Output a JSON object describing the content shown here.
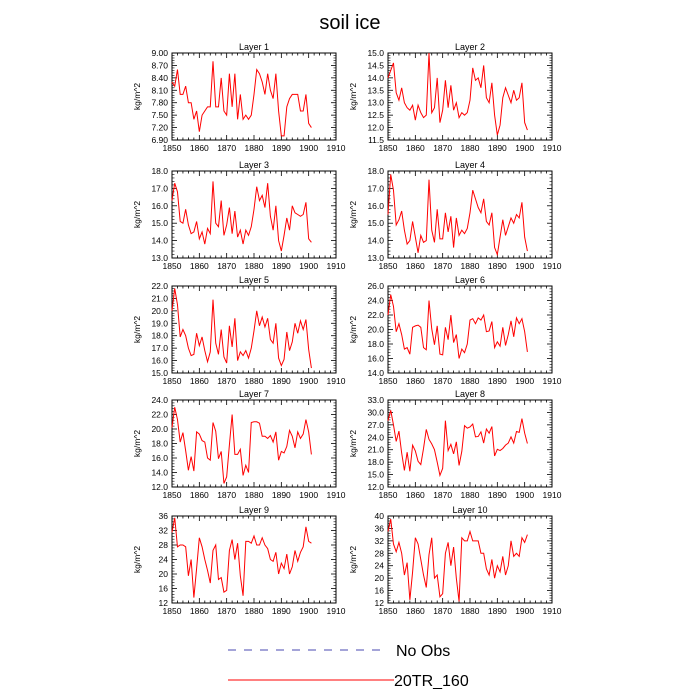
{
  "figure": {
    "title": "soil ice",
    "legend": {
      "no_obs": {
        "label": "No Obs",
        "color": "#4a4ab0",
        "dash": true
      },
      "model": {
        "label": "20TR_160",
        "color": "#ff0000",
        "dash": false
      }
    }
  },
  "chart_data": [
    {
      "type": "line",
      "title": "Layer 1",
      "ylabel": "kg/m^2",
      "xlim": [
        1850,
        1910
      ],
      "xticks": [
        "1850",
        "1860",
        "1870",
        "1880",
        "1890",
        "1900",
        "1910"
      ],
      "ylim": [
        6.9,
        9.0
      ],
      "yticks": [
        "6.90",
        "7.20",
        "7.50",
        "7.80",
        "8.10",
        "8.40",
        "8.70",
        "9.00"
      ],
      "x_start": 1850,
      "series": [
        {
          "color": "#ff0000",
          "values": [
            8.3,
            8.2,
            8.6,
            8.0,
            8.0,
            8.2,
            7.8,
            7.8,
            7.4,
            7.6,
            7.1,
            7.5,
            7.6,
            7.7,
            7.7,
            8.8,
            7.7,
            7.7,
            8.4,
            7.6,
            7.5,
            8.5,
            7.7,
            8.5,
            7.4,
            8.0,
            7.4,
            7.5,
            7.4,
            7.5,
            8.0,
            8.6,
            8.5,
            8.3,
            8.0,
            8.5,
            8.1,
            7.9,
            8.5,
            7.6,
            7.0,
            7.0,
            7.7,
            7.9,
            8.0,
            8.0,
            8.0,
            7.6,
            7.6,
            8.0,
            7.3,
            7.2
          ]
        }
      ]
    },
    {
      "type": "line",
      "title": "Layer 2",
      "ylabel": "kg/m^2",
      "xlim": [
        1850,
        1910
      ],
      "xticks": [
        "1850",
        "1860",
        "1870",
        "1880",
        "1890",
        "1900",
        "1910"
      ],
      "ylim": [
        11.5,
        15.0
      ],
      "yticks": [
        "11.5",
        "12.0",
        "12.5",
        "13.0",
        "13.5",
        "14.0",
        "14.5",
        "15.0"
      ],
      "x_start": 1850,
      "series": [
        {
          "color": "#ff0000",
          "values": [
            14.0,
            14.3,
            14.6,
            13.4,
            13.1,
            13.6,
            13.0,
            12.8,
            12.7,
            12.9,
            12.3,
            12.9,
            12.6,
            12.4,
            12.5,
            15.0,
            12.6,
            12.8,
            14.0,
            12.2,
            12.7,
            13.9,
            12.8,
            13.7,
            12.7,
            13.0,
            12.4,
            12.6,
            12.5,
            12.6,
            13.1,
            14.4,
            13.9,
            14.0,
            13.6,
            14.5,
            13.2,
            13.0,
            13.8,
            12.5,
            11.7,
            12.1,
            13.2,
            13.6,
            13.3,
            13.0,
            13.5,
            13.1,
            13.2,
            13.8,
            12.2,
            11.9
          ]
        }
      ]
    },
    {
      "type": "line",
      "title": "Layer 3",
      "ylabel": "kg/m^2",
      "xlim": [
        1850,
        1910
      ],
      "xticks": [
        "1850",
        "1860",
        "1870",
        "1880",
        "1890",
        "1900",
        "1910"
      ],
      "ylim": [
        13.0,
        18.0
      ],
      "yticks": [
        "13.0",
        "14.0",
        "15.0",
        "16.0",
        "17.0",
        "18.0"
      ],
      "x_start": 1850,
      "series": [
        {
          "color": "#ff0000",
          "values": [
            16.3,
            17.3,
            16.8,
            15.1,
            15.0,
            15.8,
            14.9,
            14.4,
            14.5,
            15.1,
            14.1,
            14.5,
            13.8,
            14.7,
            14.4,
            17.4,
            15.0,
            14.8,
            16.3,
            14.3,
            14.9,
            15.9,
            14.4,
            15.7,
            14.2,
            14.6,
            13.8,
            14.6,
            14.3,
            14.8,
            15.8,
            17.1,
            16.3,
            16.6,
            15.9,
            17.3,
            15.4,
            14.6,
            16.0,
            14.0,
            13.4,
            14.3,
            15.3,
            14.6,
            16.0,
            15.6,
            15.5,
            15.4,
            15.5,
            16.2,
            14.1,
            13.9
          ]
        }
      ]
    },
    {
      "type": "line",
      "title": "Layer 4",
      "ylabel": "kg/m^2",
      "xlim": [
        1850,
        1910
      ],
      "xticks": [
        "1850",
        "1860",
        "1870",
        "1880",
        "1890",
        "1900",
        "1910"
      ],
      "ylim": [
        13.0,
        18.0
      ],
      "yticks": [
        "13.0",
        "14.0",
        "15.0",
        "16.0",
        "17.0",
        "18.0"
      ],
      "x_start": 1850,
      "series": [
        {
          "color": "#ff0000",
          "values": [
            15.5,
            17.8,
            16.9,
            14.9,
            15.2,
            15.7,
            14.6,
            13.8,
            14.0,
            15.1,
            14.2,
            13.3,
            14.3,
            13.9,
            14.0,
            17.5,
            14.6,
            13.9,
            15.8,
            14.1,
            14.1,
            15.6,
            14.5,
            15.4,
            13.6,
            15.3,
            14.3,
            14.6,
            14.4,
            14.7,
            15.6,
            16.9,
            16.4,
            15.9,
            15.6,
            16.4,
            15.1,
            14.9,
            15.6,
            13.6,
            13.2,
            14.2,
            15.2,
            14.3,
            14.8,
            15.3,
            15.0,
            15.5,
            15.3,
            16.2,
            14.2,
            13.4
          ]
        }
      ]
    },
    {
      "type": "line",
      "title": "Layer 5",
      "ylabel": "kg/m^2",
      "xlim": [
        1850,
        1910
      ],
      "xticks": [
        "1850",
        "1860",
        "1870",
        "1880",
        "1890",
        "1900",
        "1910"
      ],
      "ylim": [
        15.0,
        22.0
      ],
      "yticks": [
        "15.0",
        "16.0",
        "17.0",
        "18.0",
        "19.0",
        "20.0",
        "21.0",
        "22.0"
      ],
      "x_start": 1850,
      "series": [
        {
          "color": "#ff0000",
          "values": [
            20.0,
            21.8,
            20.5,
            17.9,
            18.5,
            18.0,
            17.0,
            16.4,
            16.5,
            18.2,
            17.2,
            17.9,
            16.8,
            15.9,
            16.7,
            20.9,
            17.4,
            16.5,
            18.5,
            16.3,
            15.8,
            18.8,
            17.1,
            19.4,
            16.0,
            16.7,
            16.4,
            16.8,
            16.2,
            17.0,
            18.4,
            20.0,
            18.8,
            19.5,
            18.7,
            19.4,
            17.7,
            17.4,
            19.0,
            16.2,
            15.6,
            16.1,
            18.3,
            16.8,
            17.5,
            19.0,
            18.2,
            19.2,
            18.5,
            19.3,
            16.9,
            15.4
          ]
        }
      ]
    },
    {
      "type": "line",
      "title": "Layer 6",
      "ylabel": "kg/m^2",
      "xlim": [
        1850,
        1910
      ],
      "xticks": [
        "1850",
        "1860",
        "1870",
        "1880",
        "1890",
        "1900",
        "1910"
      ],
      "ylim": [
        14.0,
        26.0
      ],
      "yticks": [
        "14.0",
        "16.0",
        "18.0",
        "20.0",
        "22.0",
        "24.0",
        "26.0"
      ],
      "x_start": 1850,
      "series": [
        {
          "color": "#ff0000",
          "values": [
            22.0,
            24.8,
            23.2,
            19.7,
            20.8,
            19.3,
            17.3,
            17.5,
            16.6,
            20.3,
            20.5,
            20.6,
            20.3,
            17.5,
            17.2,
            24.0,
            20.1,
            17.9,
            20.5,
            16.6,
            16.5,
            20.3,
            18.6,
            22.0,
            18.2,
            19.3,
            16.0,
            17.3,
            16.8,
            18.0,
            21.3,
            21.5,
            20.8,
            21.6,
            21.3,
            22.0,
            19.7,
            19.8,
            21.1,
            17.5,
            18.3,
            17.7,
            20.3,
            17.8,
            19.3,
            21.2,
            19.0,
            21.6,
            20.8,
            21.5,
            19.7,
            16.9
          ]
        }
      ]
    },
    {
      "type": "line",
      "title": "Layer 7",
      "ylabel": "kg/m^2",
      "xlim": [
        1850,
        1910
      ],
      "xticks": [
        "1850",
        "1860",
        "1870",
        "1880",
        "1890",
        "1900",
        "1910"
      ],
      "ylim": [
        12.0,
        24.0
      ],
      "yticks": [
        "12.0",
        "14.0",
        "16.0",
        "18.0",
        "20.0",
        "22.0",
        "24.0"
      ],
      "x_start": 1850,
      "series": [
        {
          "color": "#ff0000",
          "values": [
            20.2,
            23.0,
            21.3,
            18.2,
            19.5,
            17.0,
            14.3,
            16.2,
            14.2,
            19.6,
            19.3,
            18.4,
            18.2,
            16.0,
            15.7,
            20.9,
            19.7,
            15.9,
            16.9,
            12.5,
            13.4,
            17.8,
            22.0,
            16.5,
            16.5,
            17.2,
            13.6,
            15.0,
            14.0,
            20.9,
            21.0,
            21.0,
            20.8,
            19.0,
            19.0,
            18.7,
            19.1,
            18.2,
            19.6,
            15.7,
            16.9,
            16.7,
            17.6,
            19.8,
            19.0,
            17.4,
            19.6,
            18.7,
            19.3,
            21.3,
            19.6,
            16.5
          ]
        }
      ]
    },
    {
      "type": "line",
      "title": "Layer 8",
      "ylabel": "kg/m^2",
      "xlim": [
        1850,
        1910
      ],
      "xticks": [
        "1850",
        "1860",
        "1870",
        "1880",
        "1890",
        "1900",
        "1910"
      ],
      "ylim": [
        12.0,
        33.0
      ],
      "yticks": [
        "12.0",
        "15.0",
        "18.0",
        "21.0",
        "24.0",
        "27.0",
        "30.0",
        "33.0"
      ],
      "x_start": 1850,
      "series": [
        {
          "color": "#ff0000",
          "values": [
            28.0,
            30.5,
            27.0,
            23.0,
            25.5,
            20.2,
            16.0,
            20.4,
            15.8,
            22.1,
            20.7,
            18.2,
            17.4,
            21.3,
            25.9,
            23.5,
            22.4,
            21.0,
            18.0,
            14.8,
            16.5,
            28.0,
            20.8,
            22.3,
            20.0,
            22.9,
            17.2,
            20.6,
            26.8,
            26.2,
            26.5,
            27.2,
            24.1,
            24.2,
            25.3,
            22.6,
            26.0,
            25.0,
            26.6,
            19.5,
            21.1,
            20.8,
            21.3,
            22.1,
            22.6,
            24.1,
            22.6,
            25.4,
            25.2,
            28.5,
            25.0,
            22.5
          ]
        }
      ]
    },
    {
      "type": "line",
      "title": "Layer 9",
      "ylabel": "kg/m^2",
      "xlim": [
        1850,
        1910
      ],
      "xticks": [
        "1850",
        "1860",
        "1870",
        "1880",
        "1890",
        "1900",
        "1910"
      ],
      "ylim": [
        12,
        36
      ],
      "yticks": [
        "12",
        "16",
        "20",
        "24",
        "28",
        "32",
        "36"
      ],
      "x_start": 1850,
      "series": [
        {
          "color": "#ff0000",
          "values": [
            31.5,
            35.5,
            27.5,
            28.0,
            28.0,
            27.5,
            19.5,
            24.0,
            13.5,
            21.5,
            30.0,
            27.5,
            24.0,
            21.0,
            17.5,
            26.5,
            28.0,
            18.5,
            19.0,
            15.0,
            15.5,
            26.5,
            29.5,
            24.0,
            28.5,
            19.5,
            14.0,
            29.0,
            29.0,
            28.5,
            30.5,
            28.0,
            28.0,
            30.0,
            28.0,
            27.0,
            24.0,
            23.5,
            26.0,
            20.0,
            23.0,
            21.5,
            25.5,
            20.0,
            22.0,
            26.5,
            23.5,
            26.0,
            27.5,
            33.0,
            29.0,
            28.5
          ]
        }
      ]
    },
    {
      "type": "line",
      "title": "Layer 10",
      "ylabel": "kg/m^2",
      "xlim": [
        1850,
        1910
      ],
      "xticks": [
        "1850",
        "1860",
        "1870",
        "1880",
        "1890",
        "1900",
        "1910"
      ],
      "ylim": [
        12,
        40
      ],
      "yticks": [
        "12",
        "16",
        "20",
        "24",
        "28",
        "32",
        "36",
        "40"
      ],
      "x_start": 1850,
      "series": [
        {
          "color": "#ff0000",
          "values": [
            35.0,
            39.0,
            31.0,
            28.5,
            31.5,
            28.0,
            21.0,
            25.0,
            13.0,
            22.0,
            33.0,
            31.0,
            26.0,
            21.0,
            17.0,
            27.5,
            33.0,
            20.0,
            21.0,
            14.0,
            15.0,
            28.0,
            31.5,
            24.0,
            30.0,
            20.0,
            12.5,
            33.0,
            32.0,
            32.0,
            35.0,
            32.0,
            32.0,
            32.0,
            28.0,
            28.0,
            23.0,
            21.0,
            26.0,
            20.0,
            24.0,
            22.0,
            27.0,
            21.0,
            24.0,
            32.0,
            27.0,
            28.0,
            27.0,
            33.0,
            31.5,
            34.0
          ]
        }
      ]
    }
  ]
}
